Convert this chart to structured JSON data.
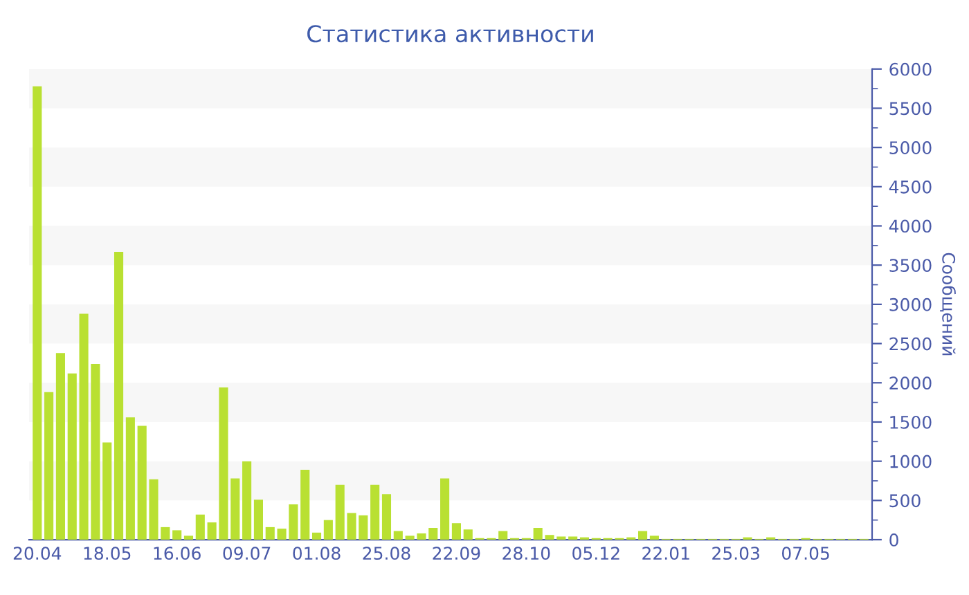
{
  "chart_data": {
    "type": "bar",
    "title": "Статистика активности",
    "ylabel": "Сообщений",
    "categories": [
      "20.04",
      null,
      null,
      null,
      null,
      null,
      "18.05",
      null,
      null,
      null,
      null,
      null,
      "16.06",
      null,
      null,
      null,
      null,
      null,
      "09.07",
      null,
      null,
      null,
      null,
      null,
      "01.08",
      null,
      null,
      null,
      null,
      null,
      "25.08",
      null,
      null,
      null,
      null,
      null,
      "22.09",
      null,
      null,
      null,
      null,
      null,
      "28.10",
      null,
      null,
      null,
      null,
      null,
      "05.12",
      null,
      null,
      null,
      null,
      null,
      "22.01",
      null,
      null,
      null,
      null,
      null,
      "25.03",
      null,
      null,
      null,
      null,
      null,
      "07.05",
      null,
      null,
      null,
      null,
      null
    ],
    "values": [
      5780,
      1880,
      2380,
      2120,
      2880,
      2240,
      1240,
      3670,
      1560,
      1450,
      770,
      160,
      120,
      50,
      320,
      220,
      1940,
      780,
      1000,
      510,
      160,
      140,
      450,
      890,
      90,
      250,
      700,
      340,
      310,
      700,
      580,
      110,
      50,
      80,
      150,
      780,
      210,
      130,
      20,
      20,
      110,
      20,
      20,
      150,
      60,
      40,
      40,
      30,
      20,
      20,
      20,
      30,
      110,
      50,
      10,
      10,
      10,
      10,
      10,
      10,
      10,
      30,
      10,
      30,
      10,
      10,
      20,
      10,
      10,
      10,
      10,
      10
    ],
    "color": "#b9e032",
    "ylim": [
      0,
      6000
    ],
    "yticks": [
      0,
      500,
      1000,
      1500,
      2000,
      2500,
      3000,
      3500,
      4000,
      4500,
      5000,
      5500,
      6000
    ],
    "bands": [
      {
        "axis": "y",
        "from": 500,
        "to": 1000,
        "color": "#f7f7f7"
      },
      {
        "axis": "y",
        "from": 1500,
        "to": 2000,
        "color": "#f7f7f7"
      },
      {
        "axis": "y",
        "from": 2500,
        "to": 3000,
        "color": "#f7f7f7"
      },
      {
        "axis": "y",
        "from": 3500,
        "to": 4000,
        "color": "#f7f7f7"
      },
      {
        "axis": "y",
        "from": 4500,
        "to": 5000,
        "color": "#f7f7f7"
      },
      {
        "axis": "y",
        "from": 5500,
        "to": 6000,
        "color": "#f7f7f7"
      }
    ],
    "grid": false,
    "legend": false
  }
}
